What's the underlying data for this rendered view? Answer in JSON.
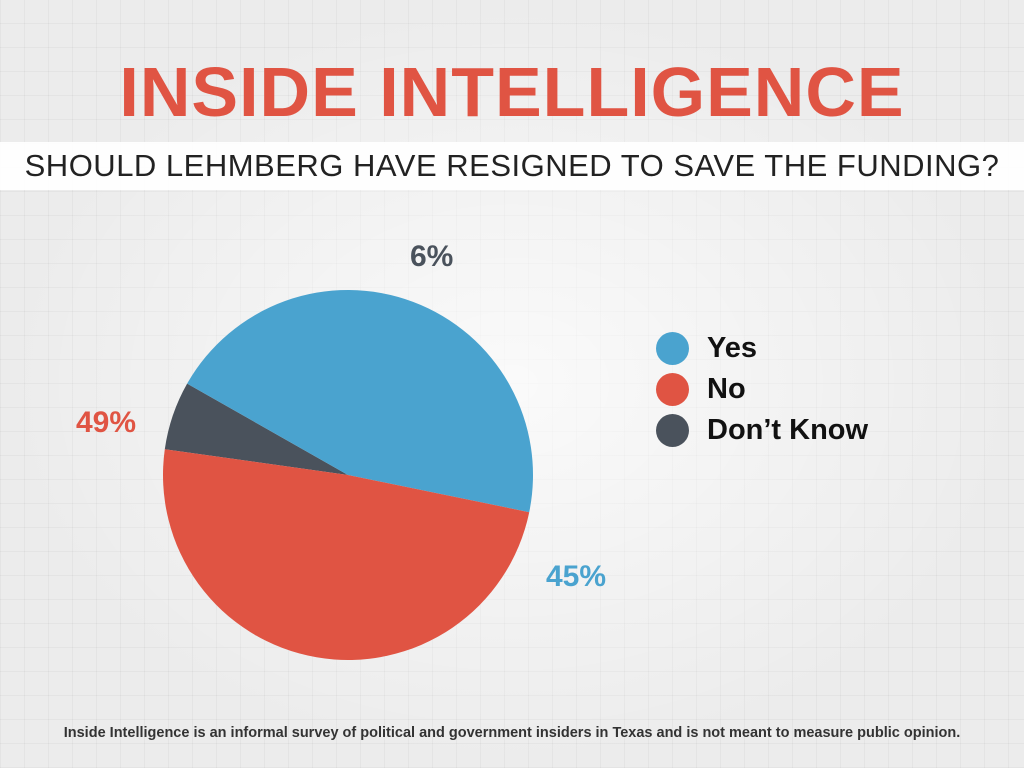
{
  "header": {
    "title": "INSIDE INTELLIGENCE",
    "question": "SHOULD LEHMBERG HAVE RESIGNED TO SAVE THE FUNDING?"
  },
  "chart_data": {
    "type": "pie",
    "categories": [
      "Yes",
      "No",
      "Don’t Know"
    ],
    "values": [
      45,
      49,
      6
    ],
    "labels": [
      "45%",
      "49%",
      "6%"
    ],
    "colors": [
      "#4aa3cf",
      "#e05443",
      "#4a525c"
    ],
    "legend_position": "right"
  },
  "footer": {
    "note": "Inside Intelligence is an informal survey of political and government insiders in Texas and is not meant to measure public opinion."
  }
}
